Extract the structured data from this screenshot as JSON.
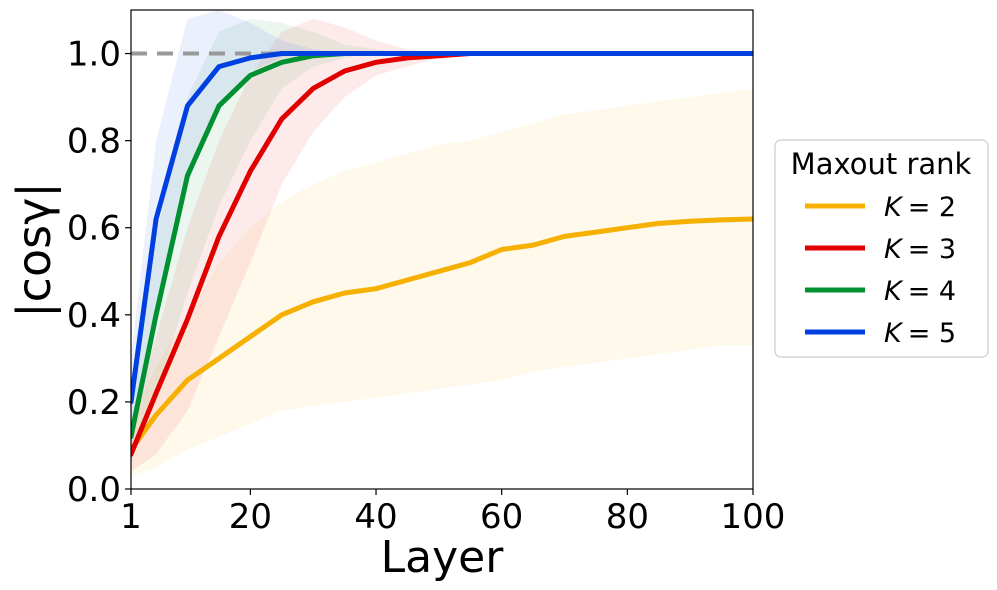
{
  "chart_data": {
    "type": "line",
    "xlabel": "Layer",
    "ylabel": "|cosγ|",
    "xlim": [
      1,
      100
    ],
    "ylim": [
      0.0,
      1.1
    ],
    "xticks": [
      1,
      20,
      40,
      60,
      80,
      100
    ],
    "xtick_labels": [
      "1",
      "20",
      "40",
      "60",
      "80",
      "100"
    ],
    "yticks": [
      0.0,
      0.2,
      0.4,
      0.6,
      0.8,
      1.0
    ],
    "ytick_labels": [
      "0.0",
      "0.2",
      "0.4",
      "0.6",
      "0.8",
      "1.0"
    ],
    "grid": false,
    "legend": {
      "title": "Maxout rank",
      "placement": "outside-right"
    },
    "reference_line": {
      "y": 1.0,
      "style": "dashed",
      "color": "#999999"
    },
    "x": [
      1,
      5,
      10,
      15,
      20,
      25,
      30,
      35,
      40,
      45,
      50,
      55,
      60,
      65,
      70,
      75,
      80,
      85,
      90,
      95,
      100
    ],
    "series": [
      {
        "name": "K = 2",
        "label_var": "K",
        "label_eq": "= 2",
        "color": "#f5b000",
        "values": [
          0.09,
          0.17,
          0.25,
          0.3,
          0.35,
          0.4,
          0.43,
          0.45,
          0.46,
          0.48,
          0.5,
          0.52,
          0.55,
          0.56,
          0.58,
          0.59,
          0.6,
          0.61,
          0.615,
          0.618,
          0.62
        ],
        "lower": [
          0.03,
          0.05,
          0.09,
          0.12,
          0.15,
          0.18,
          0.19,
          0.2,
          0.21,
          0.22,
          0.23,
          0.24,
          0.25,
          0.27,
          0.28,
          0.29,
          0.3,
          0.31,
          0.32,
          0.33,
          0.33
        ],
        "upper": [
          0.16,
          0.28,
          0.4,
          0.52,
          0.6,
          0.66,
          0.7,
          0.73,
          0.75,
          0.77,
          0.79,
          0.8,
          0.82,
          0.84,
          0.86,
          0.87,
          0.88,
          0.89,
          0.9,
          0.91,
          0.92
        ]
      },
      {
        "name": "K = 3",
        "label_var": "K",
        "label_eq": "= 3",
        "color": "#e00000",
        "values": [
          0.08,
          0.22,
          0.39,
          0.58,
          0.73,
          0.85,
          0.92,
          0.96,
          0.98,
          0.99,
          0.995,
          1.0,
          1.0,
          1.0,
          1.0,
          1.0,
          1.0,
          1.0,
          1.0,
          1.0,
          1.0
        ],
        "lower": [
          0.04,
          0.08,
          0.18,
          0.35,
          0.52,
          0.7,
          0.82,
          0.9,
          0.95,
          0.97,
          0.99,
          1.0,
          1.0,
          1.0,
          1.0,
          1.0,
          1.0,
          1.0,
          1.0,
          1.0,
          1.0
        ],
        "upper": [
          0.15,
          0.35,
          0.6,
          0.8,
          0.95,
          1.05,
          1.08,
          1.06,
          1.03,
          1.01,
          1.0,
          1.0,
          1.0,
          1.0,
          1.0,
          1.0,
          1.0,
          1.0,
          1.0,
          1.0,
          1.0
        ]
      },
      {
        "name": "K = 4",
        "label_var": "K",
        "label_eq": "= 4",
        "color": "#009030",
        "values": [
          0.12,
          0.4,
          0.72,
          0.88,
          0.95,
          0.98,
          0.995,
          1.0,
          1.0,
          1.0,
          1.0,
          1.0,
          1.0,
          1.0,
          1.0,
          1.0,
          1.0,
          1.0,
          1.0,
          1.0,
          1.0
        ],
        "lower": [
          0.06,
          0.22,
          0.45,
          0.65,
          0.8,
          0.92,
          0.97,
          0.99,
          1.0,
          1.0,
          1.0,
          1.0,
          1.0,
          1.0,
          1.0,
          1.0,
          1.0,
          1.0,
          1.0,
          1.0,
          1.0
        ],
        "upper": [
          0.2,
          0.58,
          0.9,
          1.05,
          1.08,
          1.07,
          1.05,
          1.02,
          1.01,
          1.0,
          1.0,
          1.0,
          1.0,
          1.0,
          1.0,
          1.0,
          1.0,
          1.0,
          1.0,
          1.0,
          1.0
        ]
      },
      {
        "name": "K = 5",
        "label_var": "K",
        "label_eq": "= 5",
        "color": "#0040e0",
        "values": [
          0.2,
          0.62,
          0.88,
          0.97,
          0.99,
          1.0,
          1.0,
          1.0,
          1.0,
          1.0,
          1.0,
          1.0,
          1.0,
          1.0,
          1.0,
          1.0,
          1.0,
          1.0,
          1.0,
          1.0,
          1.0
        ],
        "lower": [
          0.12,
          0.42,
          0.7,
          0.88,
          0.96,
          0.99,
          1.0,
          1.0,
          1.0,
          1.0,
          1.0,
          1.0,
          1.0,
          1.0,
          1.0,
          1.0,
          1.0,
          1.0,
          1.0,
          1.0,
          1.0
        ],
        "upper": [
          0.3,
          0.8,
          1.08,
          1.1,
          1.07,
          1.03,
          1.01,
          1.0,
          1.0,
          1.0,
          1.0,
          1.0,
          1.0,
          1.0,
          1.0,
          1.0,
          1.0,
          1.0,
          1.0,
          1.0,
          1.0
        ]
      }
    ]
  }
}
